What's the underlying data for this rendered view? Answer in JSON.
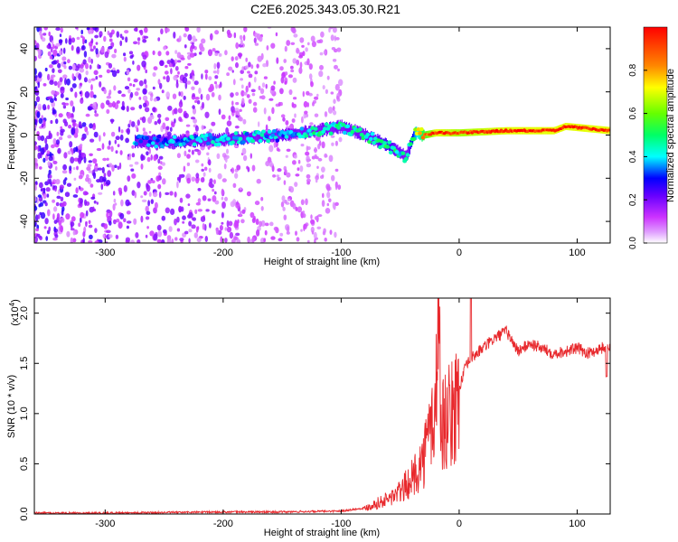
{
  "title": "C2E6.2025.343.05.30.R21",
  "chart_data": [
    {
      "type": "heatmap",
      "xlabel": "Height of straight line (km)",
      "ylabel": "Frequency (Hz)",
      "xlim": [
        -360,
        128
      ],
      "ylim": [
        -50,
        50
      ],
      "xticks": [
        -300,
        -200,
        -100,
        0,
        100
      ],
      "yticks": [
        -40,
        -20,
        0,
        20,
        40
      ],
      "colorbar": {
        "label": "Normalized spectral amplitude",
        "range": [
          0,
          1
        ],
        "ticks": [
          "0.0",
          "0.2",
          "0.4",
          "0.6",
          "0.8"
        ],
        "tick_values": [
          0.0,
          0.2,
          0.4,
          0.6,
          0.8
        ],
        "colors": [
          "#ffffff",
          "#cc33ff",
          "#6600ff",
          "#0000ff",
          "#00ffff",
          "#00ff66",
          "#66ff00",
          "#ffff00",
          "#ff8800",
          "#ff0000"
        ]
      },
      "noise_region_x": [
        -360,
        -100
      ],
      "signal_trace": {
        "x": [
          -275,
          -240,
          -200,
          -170,
          -150,
          -120,
          -100,
          -80,
          -60,
          -45,
          -38,
          -30,
          -20,
          0,
          40,
          80,
          90,
          128
        ],
        "y": [
          -3,
          -3,
          -2,
          -1,
          0,
          2,
          4,
          0,
          -5,
          -10,
          1,
          0,
          1,
          1,
          2,
          2,
          4,
          2
        ],
        "amplitude": [
          0.35,
          0.35,
          0.4,
          0.4,
          0.35,
          0.45,
          0.45,
          0.45,
          0.5,
          0.4,
          0.6,
          0.8,
          0.95,
          0.9,
          0.95,
          0.95,
          0.95,
          0.95
        ]
      }
    },
    {
      "type": "line",
      "xlabel": "Height of straight line (km)",
      "ylabel": "SNR (10 * v/v)",
      "yscale_label": "(x10",
      "yscale_exp": "4",
      "yscale_close": ")",
      "xlim": [
        -360,
        128
      ],
      "ylim": [
        0,
        2.15
      ],
      "xticks": [
        -300,
        -200,
        -100,
        0,
        100
      ],
      "yticks": [
        0.0,
        0.5,
        1.0,
        1.5,
        2.0
      ],
      "ytick_labels": [
        "0.0",
        "0.5",
        "1.0",
        "1.5",
        "2.0"
      ],
      "color": "#e8282c",
      "series": [
        {
          "name": "SNR",
          "x": [
            -360,
            -300,
            -200,
            -150,
            -100,
            -80,
            -60,
            -50,
            -40,
            -30,
            -25,
            -20,
            -18,
            -15,
            -10,
            -5,
            0,
            5,
            10,
            15,
            20,
            30,
            40,
            50,
            60,
            70,
            80,
            90,
            100,
            110,
            120,
            128
          ],
          "values": [
            0.01,
            0.01,
            0.02,
            0.02,
            0.03,
            0.06,
            0.15,
            0.22,
            0.35,
            0.55,
            0.85,
            1.0,
            2.1,
            0.9,
            0.95,
            1.0,
            1.25,
            1.45,
            1.55,
            1.6,
            1.65,
            1.75,
            1.82,
            1.62,
            1.7,
            1.65,
            1.6,
            1.62,
            1.65,
            1.6,
            1.65,
            1.68
          ]
        }
      ]
    }
  ]
}
